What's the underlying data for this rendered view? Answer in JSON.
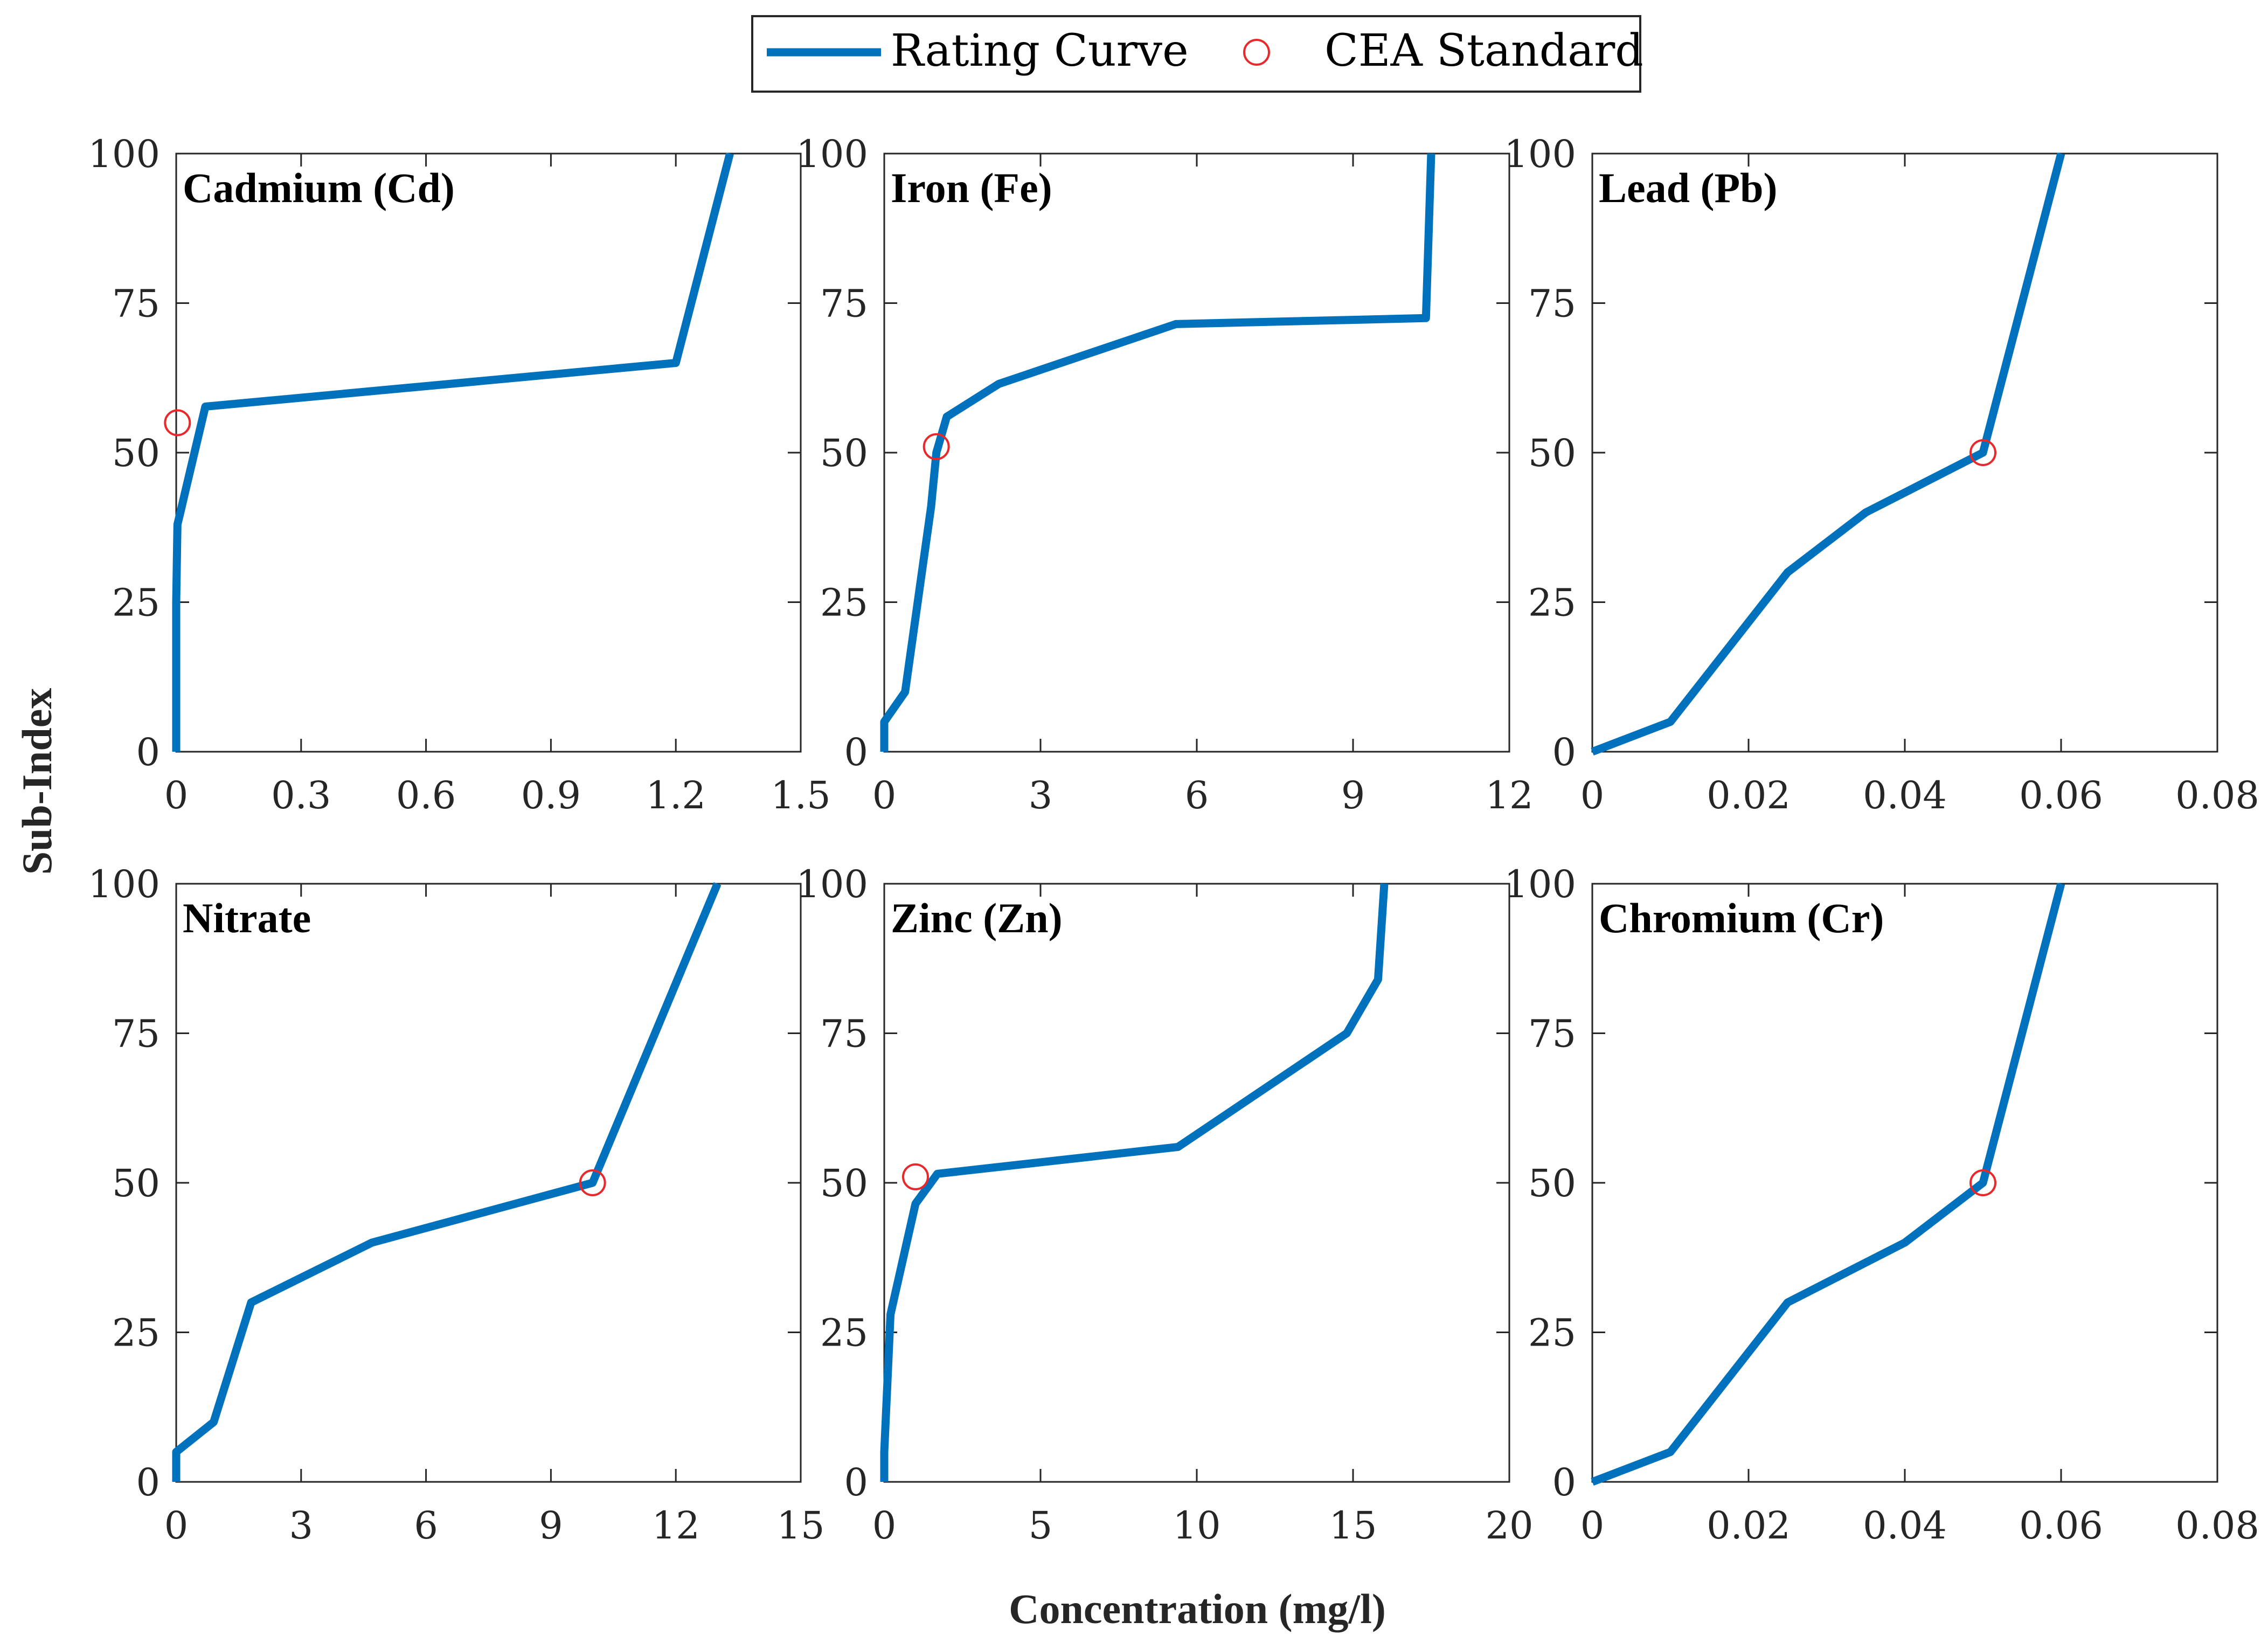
{
  "colors": {
    "curve": "#0072bd",
    "marker": "#e8282b",
    "axis": "#262626"
  },
  "figure": {
    "xlabel": "Concentration (mg/l)",
    "ylabel": "Sub-Index"
  },
  "legend": {
    "items": [
      {
        "label": "Rating Curve",
        "kind": "line"
      },
      {
        "label": "CEA Standard",
        "kind": "marker"
      }
    ]
  },
  "chart_data": [
    {
      "type": "line",
      "title": "Cadmium (Cd)",
      "xlim": [
        0,
        1.5
      ],
      "ylim": [
        0,
        100
      ],
      "xticks": [
        0,
        0.3,
        0.6,
        0.9,
        1.2,
        1.5
      ],
      "xtick_labels": [
        "0",
        "0.3",
        "0.6",
        "0.9",
        "1.2",
        "1.5"
      ],
      "yticks": [
        0,
        25,
        50,
        75,
        100
      ],
      "ytick_labels": [
        "0",
        "25",
        "50",
        "75",
        "100"
      ],
      "series": [
        {
          "name": "Rating Curve",
          "x": [
            0,
            0,
            0.003,
            0.01,
            0.02,
            0.07,
            1.2,
            1.33
          ],
          "y": [
            0,
            25,
            38,
            40,
            43,
            57.7,
            65,
            100
          ]
        },
        {
          "name": "CEA Standard",
          "x": [
            0.003
          ],
          "y": [
            55
          ]
        }
      ]
    },
    {
      "type": "line",
      "title": "Iron (Fe)",
      "xlim": [
        0,
        12
      ],
      "ylim": [
        0,
        100
      ],
      "xticks": [
        0,
        3,
        6,
        9,
        12
      ],
      "xtick_labels": [
        "0",
        "3",
        "6",
        "9",
        "12"
      ],
      "yticks": [
        0,
        25,
        50,
        75,
        100
      ],
      "ytick_labels": [
        "0",
        "25",
        "50",
        "75",
        "100"
      ],
      "series": [
        {
          "name": "Rating Curve",
          "x": [
            0,
            0,
            0.4,
            0.9,
            1.0,
            1.2,
            2.2,
            5.6,
            10.4,
            10.5
          ],
          "y": [
            0,
            5,
            10,
            41,
            50,
            56,
            61.5,
            71.5,
            72.5,
            100
          ]
        },
        {
          "name": "CEA Standard",
          "x": [
            1.0
          ],
          "y": [
            51
          ]
        }
      ]
    },
    {
      "type": "line",
      "title": "Lead (Pb)",
      "xlim": [
        0,
        0.08
      ],
      "ylim": [
        0,
        100
      ],
      "xticks": [
        0,
        0.02,
        0.04,
        0.06,
        0.08
      ],
      "xtick_labels": [
        "0",
        "0.02",
        "0.04",
        "0.06",
        "0.08"
      ],
      "yticks": [
        0,
        25,
        50,
        75,
        100
      ],
      "ytick_labels": [
        "0",
        "25",
        "50",
        "75",
        "100"
      ],
      "series": [
        {
          "name": "Rating Curve",
          "x": [
            0,
            0.01,
            0.025,
            0.035,
            0.05,
            0.06
          ],
          "y": [
            0,
            5,
            30,
            40,
            50,
            100
          ]
        },
        {
          "name": "CEA Standard",
          "x": [
            0.05
          ],
          "y": [
            50
          ]
        }
      ]
    },
    {
      "type": "line",
      "title": "Nitrate",
      "xlim": [
        0,
        15
      ],
      "ylim": [
        0,
        100
      ],
      "xticks": [
        0,
        3,
        6,
        9,
        12,
        15
      ],
      "xtick_labels": [
        "0",
        "3",
        "6",
        "9",
        "12",
        "15"
      ],
      "yticks": [
        0,
        25,
        50,
        75,
        100
      ],
      "ytick_labels": [
        "0",
        "25",
        "50",
        "75",
        "100"
      ],
      "series": [
        {
          "name": "Rating Curve",
          "x": [
            0,
            0,
            0.9,
            1.8,
            4.7,
            10,
            13
          ],
          "y": [
            0,
            5,
            10,
            30,
            40,
            50,
            100
          ]
        },
        {
          "name": "CEA Standard",
          "x": [
            10
          ],
          "y": [
            50
          ]
        }
      ]
    },
    {
      "type": "line",
      "title": "Zinc (Zn)",
      "xlim": [
        0,
        20
      ],
      "ylim": [
        0,
        100
      ],
      "xticks": [
        0,
        5,
        10,
        15,
        20
      ],
      "xtick_labels": [
        "0",
        "5",
        "10",
        "15",
        "20"
      ],
      "yticks": [
        0,
        25,
        50,
        75,
        100
      ],
      "ytick_labels": [
        "0",
        "25",
        "50",
        "75",
        "100"
      ],
      "series": [
        {
          "name": "Rating Curve",
          "x": [
            0,
            0,
            0.2,
            1.0,
            1.7,
            9.4,
            14.8,
            15.8,
            16.0
          ],
          "y": [
            0,
            5,
            28,
            46.5,
            51.5,
            56,
            75,
            84,
            100
          ]
        },
        {
          "name": "CEA Standard",
          "x": [
            1.0
          ],
          "y": [
            51
          ]
        }
      ]
    },
    {
      "type": "line",
      "title": "Chromium (Cr)",
      "xlim": [
        0,
        0.08
      ],
      "ylim": [
        0,
        100
      ],
      "xticks": [
        0,
        0.02,
        0.04,
        0.06,
        0.08
      ],
      "xtick_labels": [
        "0",
        "0.02",
        "0.04",
        "0.06",
        "0.08"
      ],
      "yticks": [
        0,
        25,
        50,
        75,
        100
      ],
      "ytick_labels": [
        "0",
        "25",
        "50",
        "75",
        "100"
      ],
      "series": [
        {
          "name": "Rating Curve",
          "x": [
            0,
            0.01,
            0.025,
            0.04,
            0.05,
            0.06
          ],
          "y": [
            0,
            5,
            30,
            40,
            50,
            100
          ]
        },
        {
          "name": "CEA Standard",
          "x": [
            0.05
          ],
          "y": [
            50
          ]
        }
      ]
    }
  ]
}
